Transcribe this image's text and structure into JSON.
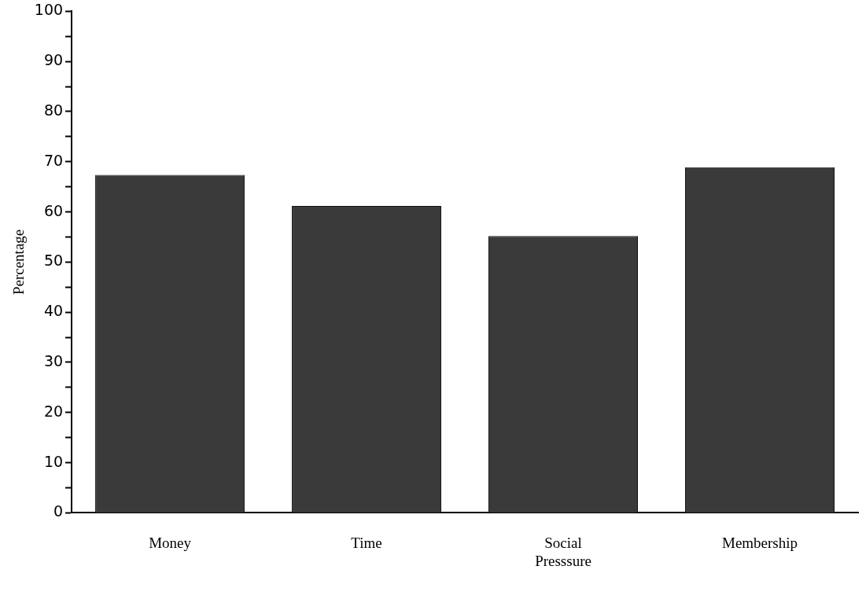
{
  "chart_data": {
    "type": "bar",
    "ylabel": "Percentage",
    "categories": [
      "Money",
      "Time",
      "Social Presssure",
      "Membership"
    ],
    "values": [
      67.4,
      61.2,
      55.2,
      68.9
    ],
    "color": "#3a3a3a",
    "ylim": [
      0,
      100
    ],
    "yticks": [
      0,
      {
        "value": 5,
        "label": null
      },
      10,
      {
        "value": 15,
        "label": null
      },
      20,
      {
        "value": 25,
        "label": null
      },
      30,
      {
        "value": 35,
        "label": null
      },
      40,
      {
        "value": 45,
        "label": null
      },
      50,
      {
        "value": 55,
        "label": null
      },
      60,
      {
        "value": 65,
        "label": null
      },
      70,
      {
        "value": 75,
        "label": null
      },
      80,
      {
        "value": 85,
        "label": null
      },
      90,
      {
        "value": 95,
        "label": null
      },
      100
    ],
    "grid": false,
    "legend": false
  }
}
